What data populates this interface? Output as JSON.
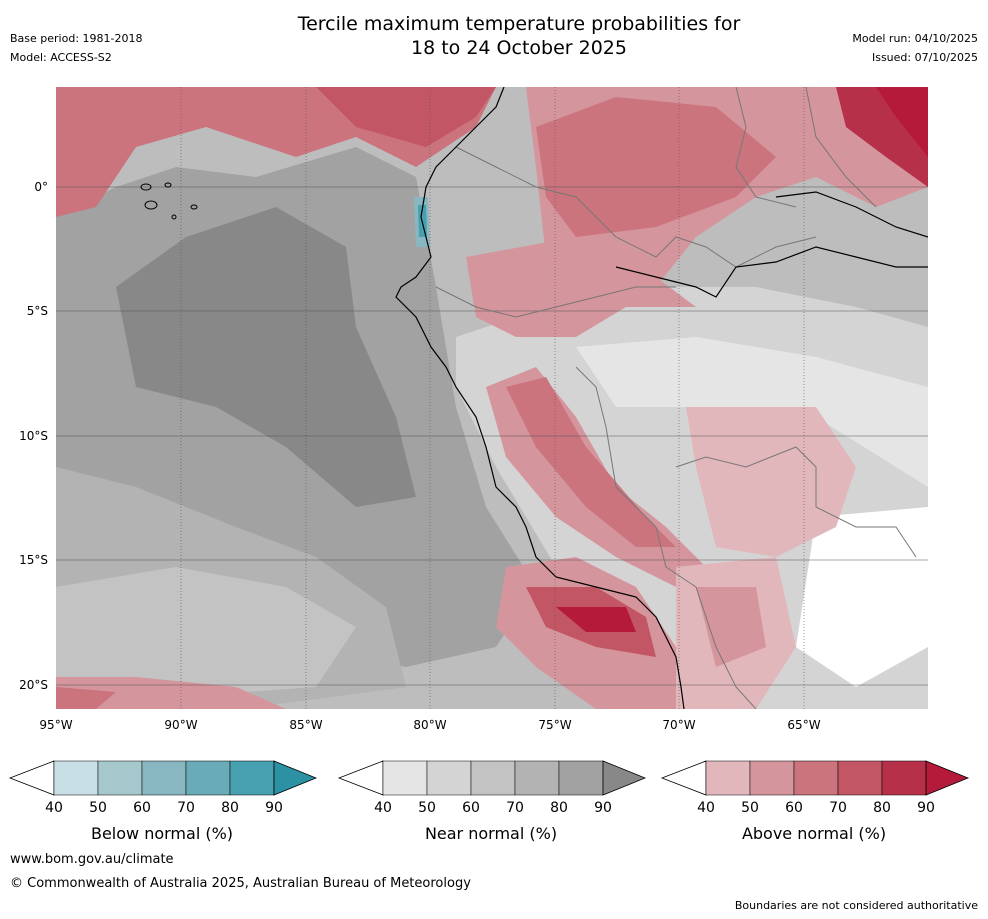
{
  "header": {
    "title_line1": "Tercile maximum temperature probabilities for",
    "title_line2": "18 to 24 October 2025",
    "base_period": "Base period: 1981-2018",
    "model": "Model: ACCESS-S2",
    "model_run": "Model run: 04/10/2025",
    "issued": "Issued: 07/10/2025"
  },
  "axes": {
    "latitudes": [
      "0°",
      "5°S",
      "10°S",
      "15°S",
      "20°S"
    ],
    "longitudes": [
      "95°W",
      "90°W",
      "85°W",
      "80°W",
      "75°W",
      "70°W",
      "65°W"
    ]
  },
  "legends": [
    {
      "title": "Below normal (%)",
      "ticks": [
        "40",
        "50",
        "60",
        "70",
        "80",
        "90"
      ],
      "colors": [
        "#c8e0e5",
        "#a6c8cd",
        "#88b7c1",
        "#69abb7",
        "#47a0b0",
        "#2b91a3"
      ]
    },
    {
      "title": "Near normal (%)",
      "ticks": [
        "40",
        "50",
        "60",
        "70",
        "80",
        "90"
      ],
      "colors": [
        "#e5e5e5",
        "#d4d4d4",
        "#c3c3c3",
        "#b3b3b3",
        "#a2a2a2",
        "#888888"
      ]
    },
    {
      "title": "Above normal (%)",
      "ticks": [
        "40",
        "50",
        "60",
        "70",
        "80",
        "90"
      ],
      "colors": [
        "#e2b7bc",
        "#d5959c",
        "#cb747e",
        "#c35665",
        "#b7304a",
        "#b51a3a"
      ]
    }
  ],
  "footer": {
    "url": "www.bom.gov.au/climate",
    "copyright": "© Commonwealth of Australia 2025, Australian Bureau of Meteorology",
    "disclaimer": "Boundaries are not considered authoritative"
  }
}
